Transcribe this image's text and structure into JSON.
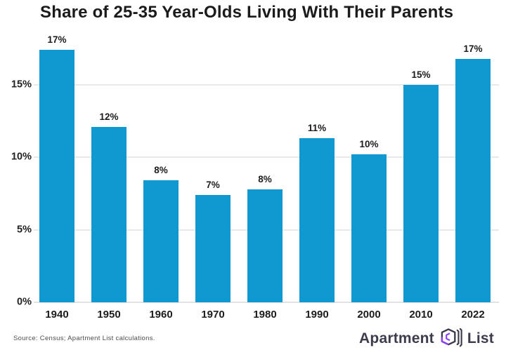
{
  "title": "Share of 25-35 Year-Olds Living With Their Parents",
  "chart_data": {
    "type": "bar",
    "title": "Share of 25-35 Year-Olds Living With Their Parents",
    "categories": [
      "1940",
      "1950",
      "1960",
      "1970",
      "1980",
      "1990",
      "2000",
      "2010",
      "2022"
    ],
    "values": [
      17.4,
      12.1,
      8.4,
      7.4,
      7.8,
      11.3,
      10.2,
      15.0,
      16.8
    ],
    "data_labels": [
      "17%",
      "12%",
      "8%",
      "7%",
      "8%",
      "11%",
      "10%",
      "15%",
      "17%"
    ],
    "xlabel": "",
    "ylabel": "",
    "ylim": [
      0,
      18
    ],
    "yticks": [
      {
        "value": 0,
        "label": "0%"
      },
      {
        "value": 5,
        "label": "5%"
      },
      {
        "value": 10,
        "label": "10%"
      },
      {
        "value": 15,
        "label": "15%"
      }
    ],
    "grid": "horizontal",
    "legend": "none",
    "bar_color": "#1099D1",
    "gridline_color": "#e9e9e9",
    "label_color": "#1c1c1c"
  },
  "footer": {
    "source": "Source: Census; Apartment List calculations.",
    "logo": {
      "word1": "Apartment",
      "word2": "List",
      "icon": "apartment-list-logo-icon",
      "text_color": "#3c3c4c",
      "accent_color": "#8a3ffc"
    }
  }
}
